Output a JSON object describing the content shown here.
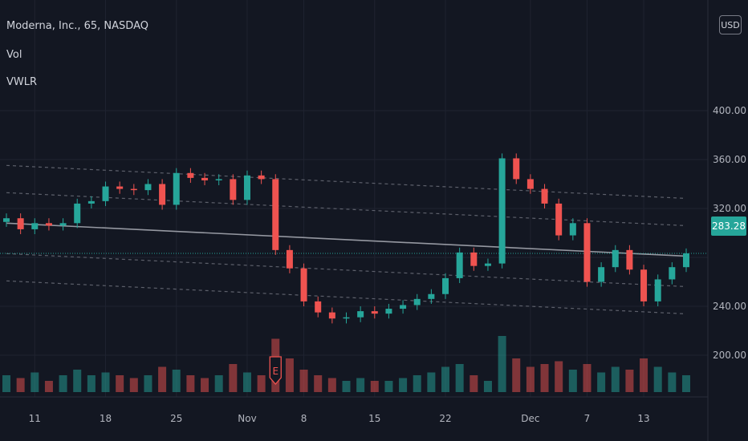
{
  "header": {
    "symbol_line": "Moderna, Inc., 65, NASDAQ",
    "indicators": [
      "Vol",
      "VWLR"
    ],
    "currency_button": "USD"
  },
  "price_axis": {
    "labels": [
      "400.00",
      "360.00",
      "320.00",
      "283.28",
      "240.00",
      "200.00"
    ],
    "last_price": "283.28"
  },
  "time_axis": {
    "labels": [
      "11",
      "18",
      "25",
      "Nov",
      "8",
      "15",
      "22",
      "Dec",
      "7",
      "13"
    ]
  },
  "earnings_marker": "E",
  "colors": {
    "background": "#131722",
    "up": "#26a69a",
    "down": "#ef5350",
    "trend": "#9598a1",
    "grid": "#1f2330",
    "axis_text": "#b2b5be"
  },
  "chart_data": {
    "type": "candlestick",
    "title": "Moderna, Inc., 65, NASDAQ",
    "xlabel": "",
    "ylabel": "",
    "ylim": [
      178,
      411
    ],
    "y_ticks": [
      200,
      240,
      280,
      320,
      360,
      400
    ],
    "last_price": 283.28,
    "grid": true,
    "series": [
      {
        "name": "Price",
        "points": [
          {
            "date": "Oct 7",
            "close": 312
          },
          {
            "date": "Oct 8",
            "close": 303
          },
          {
            "date": "Oct 11",
            "close": 308
          },
          {
            "date": "Oct 12",
            "close": 306
          },
          {
            "date": "Oct 13",
            "close": 308
          },
          {
            "date": "Oct 14",
            "close": 324
          },
          {
            "date": "Oct 15",
            "close": 326
          },
          {
            "date": "Oct 18",
            "close": 338
          },
          {
            "date": "Oct 19",
            "close": 336
          },
          {
            "date": "Oct 20",
            "close": 335
          },
          {
            "date": "Oct 21",
            "close": 340
          },
          {
            "date": "Oct 22",
            "close": 323
          },
          {
            "date": "Oct 25",
            "close": 349
          },
          {
            "date": "Oct 26",
            "close": 345
          },
          {
            "date": "Oct 27",
            "close": 343
          },
          {
            "date": "Oct 28",
            "close": 344
          },
          {
            "date": "Oct 29",
            "close": 327
          },
          {
            "date": "Nov 1",
            "close": 347
          },
          {
            "date": "Nov 2",
            "close": 344
          },
          {
            "date": "Nov 4",
            "close": 286
          },
          {
            "date": "Nov 5",
            "close": 271
          },
          {
            "date": "Nov 8",
            "close": 244
          },
          {
            "date": "Nov 9",
            "close": 235
          },
          {
            "date": "Nov 10",
            "close": 230
          },
          {
            "date": "Nov 11",
            "close": 231
          },
          {
            "date": "Nov 12",
            "close": 236
          },
          {
            "date": "Nov 15",
            "close": 234
          },
          {
            "date": "Nov 16",
            "close": 238
          },
          {
            "date": "Nov 17",
            "close": 241
          },
          {
            "date": "Nov 18",
            "close": 246
          },
          {
            "date": "Nov 19",
            "close": 250
          },
          {
            "date": "Nov 22",
            "close": 263
          },
          {
            "date": "Nov 23",
            "close": 284
          },
          {
            "date": "Nov 24",
            "close": 273
          },
          {
            "date": "Nov 26",
            "close": 275
          },
          {
            "date": "Nov 29",
            "close": 361
          },
          {
            "date": "Nov 30",
            "close": 344
          },
          {
            "date": "Dec 1",
            "close": 336
          },
          {
            "date": "Dec 2",
            "close": 324
          },
          {
            "date": "Dec 3",
            "close": 298
          },
          {
            "date": "Dec 6",
            "close": 308
          },
          {
            "date": "Dec 7",
            "close": 260
          },
          {
            "date": "Dec 8",
            "close": 272
          },
          {
            "date": "Dec 9",
            "close": 286
          },
          {
            "date": "Dec 10",
            "close": 270
          },
          {
            "date": "Dec 13",
            "close": 244
          },
          {
            "date": "Dec 14",
            "close": 262
          },
          {
            "date": "Dec 15",
            "close": 272
          },
          {
            "date": "Dec 16",
            "close": 283.28
          }
        ]
      },
      {
        "name": "VWLR",
        "values": [
          {
            "date": "Oct 7",
            "close": 308
          },
          {
            "date": "Dec 16",
            "close": 281
          }
        ]
      }
    ],
    "earnings": [
      {
        "date": "Nov 4",
        "label": "E"
      }
    ]
  }
}
